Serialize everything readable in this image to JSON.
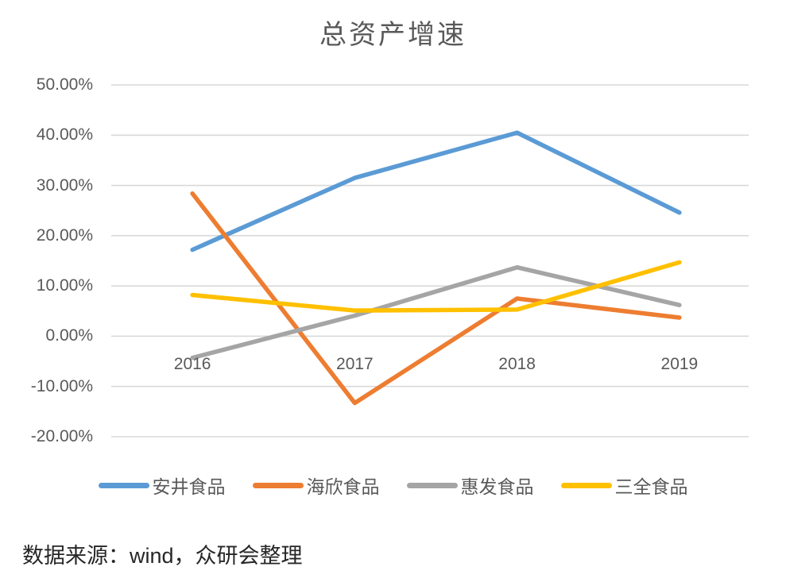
{
  "title": "总资产增速",
  "source_note": "数据来源：wind，众研会整理",
  "axis": {
    "y_tick_labels": [
      "50.00%",
      "40.00%",
      "30.00%",
      "20.00%",
      "10.00%",
      "0.00%",
      "-10.00%",
      "-20.00%"
    ],
    "y_tick_values": [
      50,
      40,
      30,
      20,
      10,
      0,
      -10,
      -20
    ],
    "gridline_color": "#d9d9d9",
    "label_color": "#595959"
  },
  "chart_data": {
    "type": "line",
    "title": "总资产增速",
    "categories": [
      "2016",
      "2017",
      "2018",
      "2019"
    ],
    "series": [
      {
        "name": "安井食品",
        "color": "#5b9bd5",
        "values": [
          17.2,
          31.5,
          40.5,
          24.6
        ]
      },
      {
        "name": "海欣食品",
        "color": "#ed7d31",
        "values": [
          28.4,
          -13.3,
          7.5,
          3.7
        ]
      },
      {
        "name": "惠发食品",
        "color": "#a5a5a5",
        "values": [
          -4.3,
          4.1,
          13.7,
          6.2
        ]
      },
      {
        "name": "三全食品",
        "color": "#ffc000",
        "values": [
          8.2,
          5.1,
          5.3,
          14.7
        ]
      }
    ],
    "xlabel": "",
    "ylabel": "",
    "ylim": [
      -20,
      50
    ],
    "y_step": 10,
    "grid": true,
    "legend_position": "bottom"
  }
}
